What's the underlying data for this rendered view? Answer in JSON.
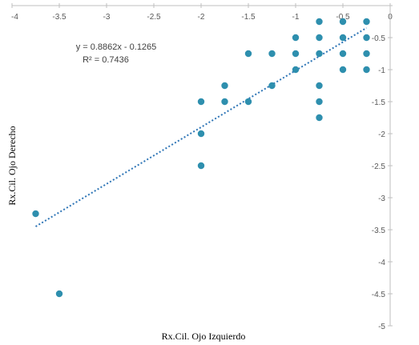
{
  "chart_data": {
    "type": "scatter",
    "title": "",
    "xlabel": "Rx.Cil. Ojo Izquierdo",
    "ylabel": "Rx.Cil. Ojo Derecho",
    "xlim": [
      -4,
      0
    ],
    "ylim": [
      -5,
      0
    ],
    "xticks": [
      "-4",
      "-3.5",
      "-3",
      "-2.5",
      "-2",
      "-1.5",
      "-1",
      "-0.5",
      "0"
    ],
    "yticks": [
      "0",
      "-0.5",
      "-1",
      "-1.5",
      "-2",
      "-2.5",
      "-3",
      "-3.5",
      "-4",
      "-4.5",
      "-5"
    ],
    "grid": false,
    "legend": "none",
    "colors": {
      "marker": "#2E8FAE",
      "trendline": "#2E75B6",
      "axis": "#BFBFBF"
    },
    "points": [
      [
        -3.75,
        -3.25
      ],
      [
        -3.5,
        -4.5
      ],
      [
        -2,
        -1.5
      ],
      [
        -2,
        -2
      ],
      [
        -2,
        -2.5
      ],
      [
        -1.75,
        -1.25
      ],
      [
        -1.75,
        -1.5
      ],
      [
        -1.5,
        -0.75
      ],
      [
        -1.5,
        -1.5
      ],
      [
        -1.25,
        -0.75
      ],
      [
        -1.25,
        -1.25
      ],
      [
        -1,
        -0.5
      ],
      [
        -1,
        -0.75
      ],
      [
        -1,
        -1
      ],
      [
        -0.75,
        -0.25
      ],
      [
        -0.75,
        -0.5
      ],
      [
        -0.75,
        -0.75
      ],
      [
        -0.75,
        -1.25
      ],
      [
        -0.75,
        -1.5
      ],
      [
        -0.75,
        -1.75
      ],
      [
        -0.5,
        -0.25
      ],
      [
        -0.5,
        -0.5
      ],
      [
        -0.5,
        -0.75
      ],
      [
        -0.5,
        -1
      ],
      [
        -0.25,
        -0.25
      ],
      [
        -0.25,
        -0.5
      ],
      [
        -0.25,
        -0.75
      ],
      [
        -0.25,
        -1
      ]
    ],
    "trendline": {
      "type": "linear",
      "slope": 0.8862,
      "intercept": -0.1265,
      "x_range": [
        -3.75,
        -0.25
      ],
      "equation_label": "y = 0.8862x - 0.1265",
      "r2_label": "R² = 0.7436"
    }
  }
}
